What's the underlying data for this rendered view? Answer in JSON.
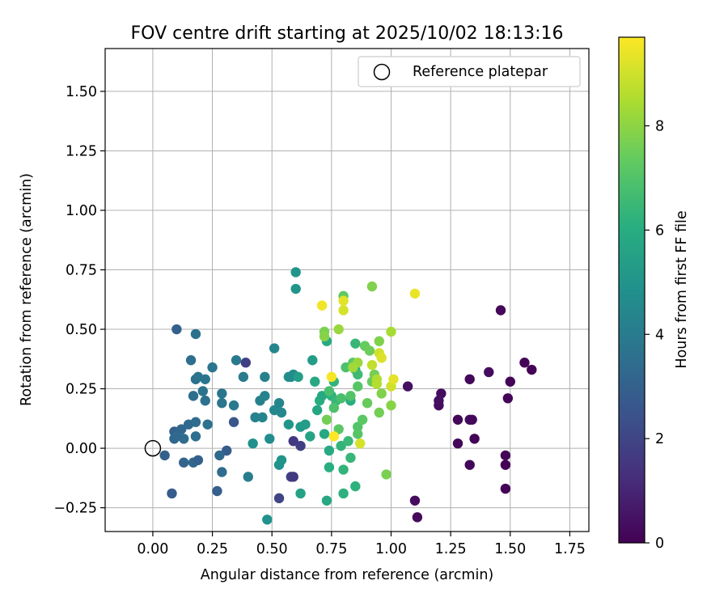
{
  "chart_data": {
    "type": "scatter",
    "title": "FOV centre drift starting at 2025/10/02 18:13:16",
    "xlabel": "Angular distance from reference (arcmin)",
    "ylabel": "Rotation from reference (arcmin)",
    "xlim": [
      -0.2,
      1.83
    ],
    "ylim": [
      -0.35,
      1.68
    ],
    "xticks": [
      0,
      0.25,
      0.5,
      0.75,
      1,
      1.25,
      1.5,
      1.75
    ],
    "xtick_labels": [
      "0.00",
      "0.25",
      "0.50",
      "0.75",
      "1.00",
      "1.25",
      "1.50",
      "1.75"
    ],
    "yticks": [
      -0.25,
      0,
      0.25,
      0.5,
      0.75,
      1,
      1.25,
      1.5
    ],
    "ytick_labels": [
      "−0.25",
      "0.00",
      "0.25",
      "0.50",
      "0.75",
      "1.00",
      "1.25",
      "1.50"
    ],
    "grid": true,
    "legend": {
      "position": "upper right",
      "label": "Reference platepar"
    },
    "reference_point": {
      "x": 0,
      "y": 0
    },
    "colorbar": {
      "label": "Hours from first FF file",
      "colormap": "viridis",
      "range": [
        0,
        9.7
      ],
      "ticks": [
        0,
        2,
        4,
        6,
        8
      ],
      "tick_labels": [
        "0",
        "2",
        "4",
        "6",
        "8"
      ]
    },
    "points": [
      {
        "x": 1.46,
        "y": 0.58,
        "t": 0.2
      },
      {
        "x": 1.56,
        "y": 0.36,
        "t": 0.1
      },
      {
        "x": 1.59,
        "y": 0.33,
        "t": 0.05
      },
      {
        "x": 1.41,
        "y": 0.32,
        "t": 0.3
      },
      {
        "x": 1.33,
        "y": 0.29,
        "t": 0.2
      },
      {
        "x": 1.5,
        "y": 0.28,
        "t": 0.1
      },
      {
        "x": 1.49,
        "y": 0.21,
        "t": 0.15
      },
      {
        "x": 1.21,
        "y": 0.23,
        "t": 0.3
      },
      {
        "x": 1.2,
        "y": 0.2,
        "t": 0.4
      },
      {
        "x": 1.2,
        "y": 0.18,
        "t": 0.35
      },
      {
        "x": 1.07,
        "y": 0.26,
        "t": 0.4
      },
      {
        "x": 1.28,
        "y": 0.12,
        "t": 0.2
      },
      {
        "x": 1.33,
        "y": 0.12,
        "t": 0.25
      },
      {
        "x": 1.34,
        "y": 0.12,
        "t": 0.2
      },
      {
        "x": 1.35,
        "y": 0.04,
        "t": 0.1
      },
      {
        "x": 1.28,
        "y": 0.02,
        "t": 0.15
      },
      {
        "x": 1.48,
        "y": -0.03,
        "t": 0.1
      },
      {
        "x": 1.33,
        "y": -0.07,
        "t": 0.2
      },
      {
        "x": 1.48,
        "y": -0.07,
        "t": 0.05
      },
      {
        "x": 1.48,
        "y": -0.17,
        "t": 0.05
      },
      {
        "x": 1.1,
        "y": -0.22,
        "t": 0.3
      },
      {
        "x": 1.11,
        "y": -0.29,
        "t": 0.25
      },
      {
        "x": 0.39,
        "y": 0.36,
        "t": 1.8
      },
      {
        "x": 0.59,
        "y": 0.03,
        "t": 1.6
      },
      {
        "x": 0.62,
        "y": 0.01,
        "t": 1.8
      },
      {
        "x": 0.58,
        "y": -0.12,
        "t": 1.9
      },
      {
        "x": 0.59,
        "y": -0.12,
        "t": 1.6
      },
      {
        "x": 0.53,
        "y": -0.21,
        "t": 2.0
      },
      {
        "x": 0.34,
        "y": 0.11,
        "t": 2.6
      },
      {
        "x": 0.31,
        "y": -0.01,
        "t": 2.8
      },
      {
        "x": 0.1,
        "y": 0.5,
        "t": 3.0
      },
      {
        "x": 0.08,
        "y": -0.19,
        "t": 2.8
      },
      {
        "x": 0.27,
        "y": -0.18,
        "t": 2.9
      },
      {
        "x": 0.05,
        "y": -0.03,
        "t": 3.0
      },
      {
        "x": 0.13,
        "y": -0.06,
        "t": 3.1
      },
      {
        "x": 0.17,
        "y": -0.06,
        "t": 3.2
      },
      {
        "x": 0.19,
        "y": -0.05,
        "t": 3.0
      },
      {
        "x": 0.28,
        "y": -0.03,
        "t": 3.3
      },
      {
        "x": 0.29,
        "y": -0.1,
        "t": 3.4
      },
      {
        "x": 0.09,
        "y": 0.07,
        "t": 3.0
      },
      {
        "x": 0.1,
        "y": 0.06,
        "t": 3.1
      },
      {
        "x": 0.12,
        "y": 0.08,
        "t": 3.2
      },
      {
        "x": 0.15,
        "y": 0.1,
        "t": 3.3
      },
      {
        "x": 0.09,
        "y": 0.04,
        "t": 3.2
      },
      {
        "x": 0.13,
        "y": 0.04,
        "t": 3.4
      },
      {
        "x": 0.1,
        "y": 0.05,
        "t": 3.3
      },
      {
        "x": 0.18,
        "y": 0.11,
        "t": 3.4
      },
      {
        "x": 0.18,
        "y": 0.05,
        "t": 3.5
      },
      {
        "x": 0.23,
        "y": 0.1,
        "t": 3.6
      },
      {
        "x": 0.17,
        "y": 0.22,
        "t": 3.5
      },
      {
        "x": 0.22,
        "y": 0.2,
        "t": 3.6
      },
      {
        "x": 0.29,
        "y": 0.19,
        "t": 3.8
      },
      {
        "x": 0.29,
        "y": 0.23,
        "t": 3.7
      },
      {
        "x": 0.21,
        "y": 0.24,
        "t": 3.7
      },
      {
        "x": 0.18,
        "y": 0.29,
        "t": 3.6
      },
      {
        "x": 0.19,
        "y": 0.3,
        "t": 3.7
      },
      {
        "x": 0.22,
        "y": 0.29,
        "t": 3.8
      },
      {
        "x": 0.16,
        "y": 0.37,
        "t": 3.5
      },
      {
        "x": 0.18,
        "y": 0.48,
        "t": 3.6
      },
      {
        "x": 0.25,
        "y": 0.34,
        "t": 3.8
      },
      {
        "x": 0.35,
        "y": 0.37,
        "t": 3.9
      },
      {
        "x": 0.38,
        "y": 0.3,
        "t": 4.0
      },
      {
        "x": 0.34,
        "y": 0.18,
        "t": 3.9
      },
      {
        "x": 0.4,
        "y": -0.12,
        "t": 4.1
      },
      {
        "x": 0.45,
        "y": 0.2,
        "t": 4.2
      },
      {
        "x": 0.47,
        "y": 0.22,
        "t": 4.3
      },
      {
        "x": 0.43,
        "y": 0.13,
        "t": 4.3
      },
      {
        "x": 0.46,
        "y": 0.13,
        "t": 4.4
      },
      {
        "x": 0.47,
        "y": 0.3,
        "t": 4.2
      },
      {
        "x": 0.51,
        "y": 0.42,
        "t": 4.4
      },
      {
        "x": 0.51,
        "y": 0.16,
        "t": 4.5
      },
      {
        "x": 0.53,
        "y": 0.19,
        "t": 4.4
      },
      {
        "x": 0.54,
        "y": 0.15,
        "t": 4.5
      },
      {
        "x": 0.49,
        "y": 0.04,
        "t": 4.7
      },
      {
        "x": 0.42,
        "y": 0.02,
        "t": 4.8
      },
      {
        "x": 0.53,
        "y": -0.07,
        "t": 4.9
      },
      {
        "x": 0.54,
        "y": -0.05,
        "t": 5.0
      },
      {
        "x": 0.48,
        "y": -0.3,
        "t": 4.9
      },
      {
        "x": 0.57,
        "y": 0.3,
        "t": 4.8
      },
      {
        "x": 0.58,
        "y": 0.3,
        "t": 4.6
      },
      {
        "x": 0.59,
        "y": 0.31,
        "t": 4.7
      },
      {
        "x": 0.57,
        "y": 0.1,
        "t": 5.0
      },
      {
        "x": 0.6,
        "y": 0.74,
        "t": 5.0
      },
      {
        "x": 0.6,
        "y": 0.67,
        "t": 5.0
      },
      {
        "x": 0.62,
        "y": 0.09,
        "t": 5.2
      },
      {
        "x": 0.64,
        "y": 0.1,
        "t": 5.3
      },
      {
        "x": 0.67,
        "y": 0.37,
        "t": 5.3
      },
      {
        "x": 0.68,
        "y": 0.28,
        "t": 5.8
      },
      {
        "x": 0.66,
        "y": 0.05,
        "t": 5.6
      },
      {
        "x": 0.62,
        "y": -0.19,
        "t": 5.5
      },
      {
        "x": 0.61,
        "y": 0.3,
        "t": 5.4
      },
      {
        "x": 0.69,
        "y": 0.16,
        "t": 5.7
      },
      {
        "x": 0.7,
        "y": 0.2,
        "t": 6.0
      },
      {
        "x": 0.71,
        "y": 0.22,
        "t": 5.9
      },
      {
        "x": 0.73,
        "y": 0.45,
        "t": 5.9
      },
      {
        "x": 0.72,
        "y": 0.06,
        "t": 5.8
      },
      {
        "x": 0.73,
        "y": -0.22,
        "t": 5.8
      },
      {
        "x": 0.74,
        "y": -0.01,
        "t": 5.9
      },
      {
        "x": 0.74,
        "y": -0.08,
        "t": 6.0
      },
      {
        "x": 0.75,
        "y": 0.22,
        "t": 6.2
      },
      {
        "x": 0.76,
        "y": 0.28,
        "t": 6.3
      },
      {
        "x": 0.77,
        "y": 0.2,
        "t": 6.4
      },
      {
        "x": 0.79,
        "y": 0.01,
        "t": 6.3
      },
      {
        "x": 0.8,
        "y": -0.09,
        "t": 6.3
      },
      {
        "x": 0.8,
        "y": -0.19,
        "t": 6.2
      },
      {
        "x": 0.83,
        "y": -0.04,
        "t": 6.4
      },
      {
        "x": 0.85,
        "y": -0.16,
        "t": 6.2
      },
      {
        "x": 0.82,
        "y": 0.03,
        "t": 6.5
      },
      {
        "x": 0.83,
        "y": 0.2,
        "t": 6.0
      },
      {
        "x": 0.85,
        "y": 0.33,
        "t": 6.1
      },
      {
        "x": 0.85,
        "y": 0.44,
        "t": 6.4
      },
      {
        "x": 0.86,
        "y": 0.31,
        "t": 6.6
      },
      {
        "x": 0.74,
        "y": 0.24,
        "t": 6.8
      },
      {
        "x": 0.76,
        "y": 0.17,
        "t": 6.9
      },
      {
        "x": 0.79,
        "y": 0.21,
        "t": 6.8
      },
      {
        "x": 0.83,
        "y": 0.22,
        "t": 7.0
      },
      {
        "x": 0.78,
        "y": 0.08,
        "t": 7.2
      },
      {
        "x": 0.8,
        "y": 0.64,
        "t": 7.3
      },
      {
        "x": 0.81,
        "y": 0.34,
        "t": 6.9
      },
      {
        "x": 0.84,
        "y": 0.36,
        "t": 7.2
      },
      {
        "x": 0.86,
        "y": 0.26,
        "t": 7.1
      },
      {
        "x": 0.86,
        "y": 0.09,
        "t": 7.0
      },
      {
        "x": 0.86,
        "y": 0.06,
        "t": 7.1
      },
      {
        "x": 0.88,
        "y": 0.12,
        "t": 7.2
      },
      {
        "x": 0.89,
        "y": 0.43,
        "t": 7.4
      },
      {
        "x": 0.9,
        "y": 0.19,
        "t": 7.4
      },
      {
        "x": 0.91,
        "y": 0.41,
        "t": 7.5
      },
      {
        "x": 0.92,
        "y": 0.28,
        "t": 7.4
      },
      {
        "x": 0.92,
        "y": 0.68,
        "t": 7.8
      },
      {
        "x": 0.93,
        "y": 0.31,
        "t": 7.6
      },
      {
        "x": 0.95,
        "y": 0.15,
        "t": 7.6
      },
      {
        "x": 0.96,
        "y": 0.23,
        "t": 7.8
      },
      {
        "x": 0.95,
        "y": 0.45,
        "t": 7.8
      },
      {
        "x": 0.98,
        "y": -0.11,
        "t": 7.7
      },
      {
        "x": 1.0,
        "y": 0.18,
        "t": 7.9
      },
      {
        "x": 0.72,
        "y": 0.49,
        "t": 7.7
      },
      {
        "x": 0.73,
        "y": 0.12,
        "t": 7.6
      },
      {
        "x": 0.72,
        "y": 0.47,
        "t": 7.9
      },
      {
        "x": 0.78,
        "y": 0.5,
        "t": 8.2
      },
      {
        "x": 0.86,
        "y": 0.36,
        "t": 8.2
      },
      {
        "x": 0.84,
        "y": 0.34,
        "t": 8.3
      },
      {
        "x": 1.0,
        "y": 0.49,
        "t": 8.4
      },
      {
        "x": 0.94,
        "y": 0.29,
        "t": 8.5
      },
      {
        "x": 0.94,
        "y": 0.27,
        "t": 8.6
      },
      {
        "x": 0.92,
        "y": 0.35,
        "t": 8.8
      },
      {
        "x": 0.95,
        "y": 0.4,
        "t": 9.0
      },
      {
        "x": 0.96,
        "y": 0.38,
        "t": 9.2
      },
      {
        "x": 1.0,
        "y": 0.26,
        "t": 9.0
      },
      {
        "x": 1.01,
        "y": 0.29,
        "t": 9.3
      },
      {
        "x": 0.87,
        "y": 0.02,
        "t": 9.1
      },
      {
        "x": 0.8,
        "y": 0.58,
        "t": 9.1
      },
      {
        "x": 0.8,
        "y": 0.62,
        "t": 9.3
      },
      {
        "x": 0.71,
        "y": 0.6,
        "t": 9.5
      },
      {
        "x": 0.75,
        "y": 0.3,
        "t": 9.6
      },
      {
        "x": 0.76,
        "y": 0.05,
        "t": 9.7
      },
      {
        "x": 1.1,
        "y": 0.65,
        "t": 9.4
      }
    ]
  }
}
